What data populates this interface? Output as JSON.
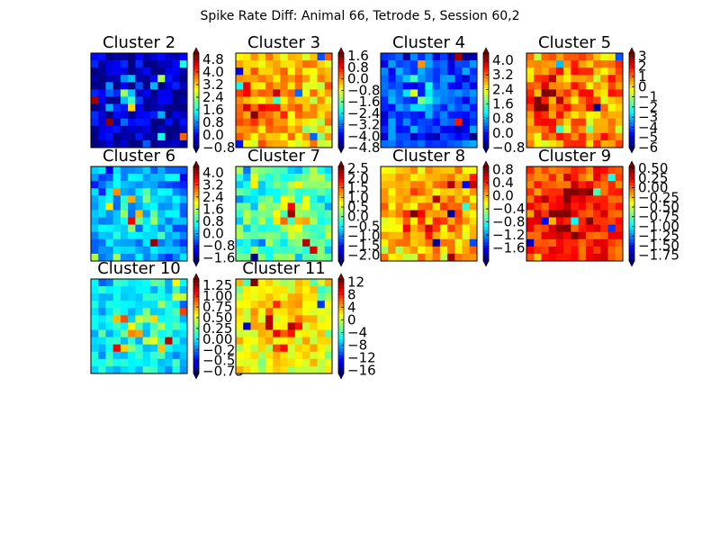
{
  "figure": {
    "suptitle": "Spike Rate Diff: Animal 66, Tetrode 5, Session 60,2"
  },
  "chart_data": [
    {
      "type": "heatmap",
      "title": "Cluster 2",
      "grid": [
        13,
        13
      ],
      "seed": 2,
      "base": 0.08,
      "hot": [
        3,
        6,
        2.5
      ],
      "colorbar": {
        "min": -0.8,
        "max": 5.2,
        "ticks": [
          "4.8",
          "4.0",
          "3.2",
          "2.4",
          "1.6",
          "0.8",
          "0.0",
          "−0.8"
        ]
      }
    },
    {
      "type": "heatmap",
      "title": "Cluster 3",
      "grid": [
        13,
        13
      ],
      "seed": 3,
      "base": 0.72,
      "hot": [
        3,
        6,
        2.5
      ],
      "colorbar": {
        "min": -4.8,
        "max": 1.8,
        "ticks": [
          "1.6",
          "0.8",
          "0.0",
          "−0.8",
          "−1.6",
          "−2.4",
          "−3.2",
          "−4.0",
          "−4.8"
        ]
      }
    },
    {
      "type": "heatmap",
      "title": "Cluster 4",
      "grid": [
        13,
        13
      ],
      "seed": 4,
      "base": 0.22,
      "hot": [
        4,
        5,
        2.2
      ],
      "colorbar": {
        "min": -0.8,
        "max": 4.4,
        "ticks": [
          "4.0",
          "3.2",
          "2.4",
          "1.6",
          "0.8",
          "0.0",
          "−0.8"
        ]
      }
    },
    {
      "type": "heatmap",
      "title": "Cluster 5",
      "grid": [
        13,
        13
      ],
      "seed": 5,
      "base": 0.78,
      "hot": [
        2,
        6,
        2.0
      ],
      "colorbar": {
        "min": -6,
        "max": 3.3,
        "ticks": [
          "3",
          "2",
          "1",
          "0",
          "−1",
          "−2",
          "−3",
          "−4",
          "−5",
          "−6"
        ]
      }
    },
    {
      "type": "heatmap",
      "title": "Cluster 6",
      "grid": [
        13,
        13
      ],
      "seed": 6,
      "base": 0.3,
      "hot": [
        6,
        6,
        3.0
      ],
      "colorbar": {
        "min": -1.8,
        "max": 4.4,
        "ticks": [
          "4.0",
          "3.2",
          "2.4",
          "1.6",
          "0.8",
          "0.0",
          "−0.8",
          "−1.6"
        ]
      }
    },
    {
      "type": "heatmap",
      "title": "Cluster 7",
      "grid": [
        13,
        13
      ],
      "seed": 7,
      "base": 0.47,
      "hot": [
        7,
        6,
        2.0
      ],
      "colorbar": {
        "min": -2.3,
        "max": 2.6,
        "ticks": [
          "2.5",
          "2.0",
          "1.5",
          "1.0",
          "0.5",
          "0.0",
          "−0.5",
          "−1.0",
          "−1.5",
          "−2.0"
        ]
      }
    },
    {
      "type": "heatmap",
      "title": "Cluster 8",
      "grid": [
        13,
        13
      ],
      "seed": 8,
      "base": 0.7,
      "hot": [
        6,
        6,
        3.0
      ],
      "colorbar": {
        "min": -2.0,
        "max": 0.9,
        "ticks": [
          "0.8",
          "0.4",
          "0.0",
          "−0.4",
          "−0.8",
          "−1.2",
          "−1.6"
        ]
      }
    },
    {
      "type": "heatmap",
      "title": "Cluster 9",
      "grid": [
        13,
        13
      ],
      "seed": 9,
      "base": 0.84,
      "hot": [
        6,
        6,
        3.0
      ],
      "colorbar": {
        "min": -1.9,
        "max": 0.55,
        "ticks": [
          "0.50",
          "0.25",
          "0.00",
          "−0.25",
          "−0.50",
          "−0.75",
          "−1.00",
          "−1.25",
          "−1.50",
          "−1.75"
        ]
      }
    },
    {
      "type": "heatmap",
      "title": "Cluster 10",
      "grid": [
        13,
        13
      ],
      "seed": 10,
      "base": 0.38,
      "hot": [
        6,
        6,
        3.0
      ],
      "colorbar": {
        "min": -0.8,
        "max": 1.4,
        "ticks": [
          "1.25",
          "1.00",
          "0.75",
          "0.50",
          "0.25",
          "0.00",
          "−0.25",
          "−0.50",
          "−0.75"
        ]
      }
    },
    {
      "type": "heatmap",
      "title": "Cluster 11",
      "grid": [
        13,
        13
      ],
      "seed": 11,
      "base": 0.62,
      "hot": [
        6,
        6,
        3.0
      ],
      "colorbar": {
        "min": -17,
        "max": 13,
        "ticks": [
          "12",
          "8",
          "4",
          "0",
          "−4",
          "−8",
          "−12",
          "−16"
        ]
      }
    }
  ]
}
